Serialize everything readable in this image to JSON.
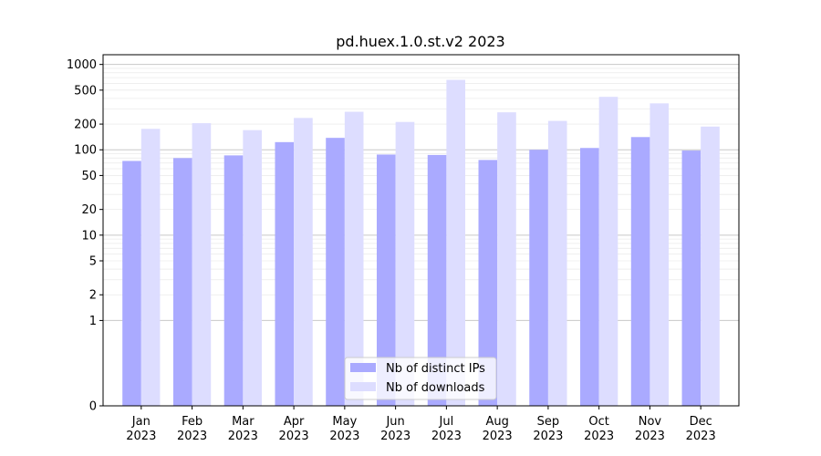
{
  "chart_data": {
    "type": "bar",
    "title": "pd.huex.1.0.st.v2 2023",
    "xlabel": "",
    "ylabel": "",
    "yscale": "symlog",
    "ylim": [
      0,
      1300
    ],
    "yticks": [
      0,
      1,
      2,
      5,
      10,
      20,
      50,
      100,
      200,
      500,
      1000
    ],
    "grid": true,
    "legend_position": "lower-center",
    "categories": [
      "Jan\n2023",
      "Feb\n2023",
      "Mar\n2023",
      "Apr\n2023",
      "May\n2023",
      "Jun\n2023",
      "Jul\n2023",
      "Aug\n2023",
      "Sep\n2023",
      "Oct\n2023",
      "Nov\n2023",
      "Dec\n2023"
    ],
    "series": [
      {
        "name": "Nb of distinct IPs",
        "color": "#aaaaff",
        "values": [
          74,
          80,
          86,
          123,
          138,
          88,
          87,
          76,
          100,
          105,
          141,
          98
        ]
      },
      {
        "name": "Nb of downloads",
        "color": "#ddddff",
        "values": [
          176,
          205,
          170,
          236,
          279,
          212,
          660,
          275,
          218,
          417,
          350,
          187
        ]
      }
    ]
  }
}
